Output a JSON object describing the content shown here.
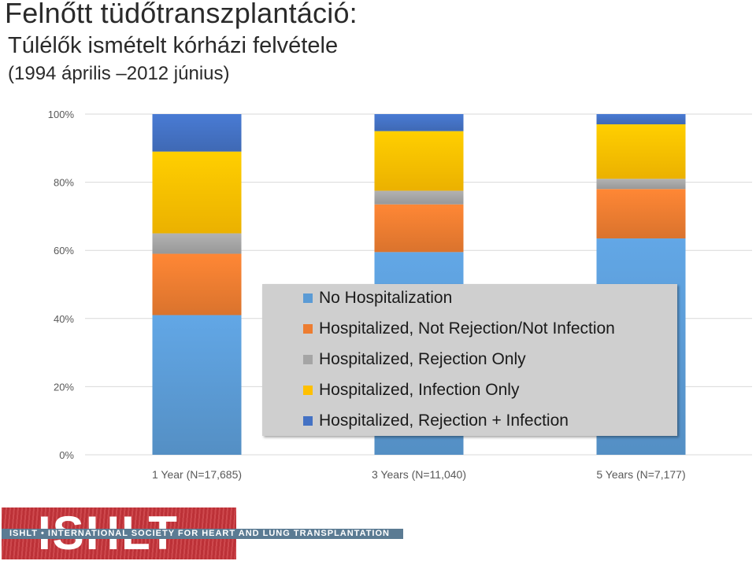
{
  "header": {
    "title": "Felnőtt tüdőtranszplantáció:",
    "subtitle": "Túlélők ismételt kórházi felvétele",
    "date_range": "(1994 április –2012 június)"
  },
  "chart_data": {
    "type": "bar",
    "stacked": true,
    "categories": [
      "1 Year (N=17,685)",
      "3 Years (N=11,040)",
      "5 Years (N=7,177)"
    ],
    "series": [
      {
        "name": "No Hospitalization",
        "color": "#5b9bd5",
        "values": [
          41,
          59.5,
          63.5
        ]
      },
      {
        "name": "Hospitalized, Not Rejection/Not Infection",
        "color": "#ed7d31",
        "values": [
          18,
          14,
          14.5
        ]
      },
      {
        "name": "Hospitalized, Rejection Only",
        "color": "#a5a5a5",
        "values": [
          6,
          4,
          3
        ]
      },
      {
        "name": "Hospitalized, Infection Only",
        "color": "#ffc000",
        "values": [
          24,
          17.5,
          16
        ]
      },
      {
        "name": "Hospitalized, Rejection + Infection",
        "color": "#4472c4",
        "values": [
          11,
          5,
          3
        ]
      }
    ],
    "yticks": [
      "0%",
      "20%",
      "40%",
      "60%",
      "80%",
      "100%"
    ],
    "ylim": [
      0,
      100
    ],
    "grid": true,
    "legend_position": "lower-right overlay"
  },
  "footer": {
    "logo_text": "ISHLT",
    "society_text": "ISHLT • INTERNATIONAL SOCIETY FOR HEART AND LUNG TRANSPLANTATION"
  }
}
